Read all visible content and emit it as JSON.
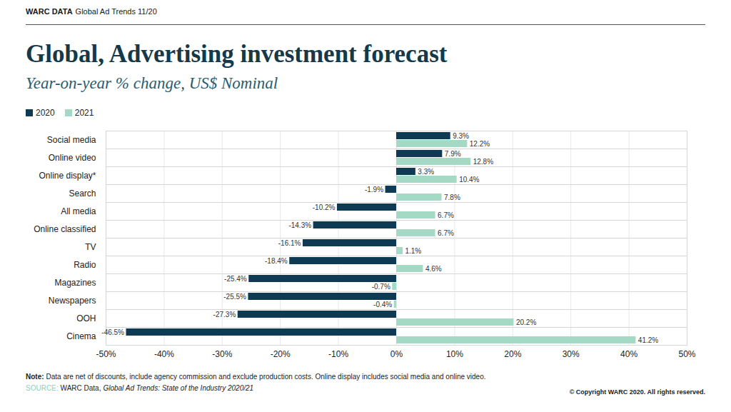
{
  "chart_data": {
    "type": "bar",
    "orientation": "horizontal",
    "title": "Global, Advertising investment forecast",
    "subtitle": "Year-on-year % change, US$ Nominal",
    "categories": [
      "Social media",
      "Online video",
      "Online display*",
      "Search",
      "All media",
      "Online classified",
      "TV",
      "Radio",
      "Magazines",
      "Newspapers",
      "OOH",
      "Cinema"
    ],
    "series": [
      {
        "name": "2020",
        "color": "#0e3a53",
        "values": [
          9.3,
          7.9,
          3.3,
          -1.9,
          -10.2,
          -14.3,
          -16.1,
          -18.4,
          -25.4,
          -25.5,
          -27.3,
          -46.5
        ],
        "value_labels": [
          "9.3%",
          "7.9%",
          "3.3%",
          "-1.9%",
          "-10.2%",
          "-14.3%",
          "-16.1%",
          "-18.4%",
          "-25.4%",
          "-25.5%",
          "-27.3%",
          "-46.5%"
        ]
      },
      {
        "name": "2021",
        "color": "#a3d9c5",
        "values": [
          12.2,
          12.8,
          10.4,
          7.8,
          6.7,
          6.7,
          1.1,
          4.6,
          -0.7,
          -0.4,
          20.2,
          41.2
        ],
        "value_labels": [
          "12.2%",
          "12.8%",
          "10.4%",
          "7.8%",
          "6.7%",
          "6.7%",
          "1.1%",
          "4.6%",
          "-0.7%",
          "-0.4%",
          "20.2%",
          "41.2%"
        ]
      }
    ],
    "xlim": [
      -50,
      50
    ],
    "xticks": [
      {
        "value": -50,
        "label": "-50%"
      },
      {
        "value": -40,
        "label": "-40%"
      },
      {
        "value": -30,
        "label": "-30%"
      },
      {
        "value": -20,
        "label": "-20%"
      },
      {
        "value": -10,
        "label": "-10%"
      },
      {
        "value": 0,
        "label": "0%"
      },
      {
        "value": 10,
        "label": "10%"
      },
      {
        "value": 20,
        "label": "20%"
      },
      {
        "value": 30,
        "label": "30%"
      },
      {
        "value": 40,
        "label": "40%"
      },
      {
        "value": 50,
        "label": "50%"
      }
    ],
    "grid": true,
    "legend": "top-left",
    "data_labels": true
  },
  "header": {
    "brand": "WARC DATA",
    "report": "Global Ad Trends 11/20"
  },
  "footer": {
    "note_label": "Note:",
    "note": "Data are net of discounts, include agency commission and exclude production costs. Online display includes social media and online video.",
    "source_label": "SOURCE:",
    "source": "WARC Data,",
    "source_title": "Global Ad Trends: State of the Industry 2020/21",
    "copyright": "© Copyright WARC 2020. All rights reserved."
  }
}
